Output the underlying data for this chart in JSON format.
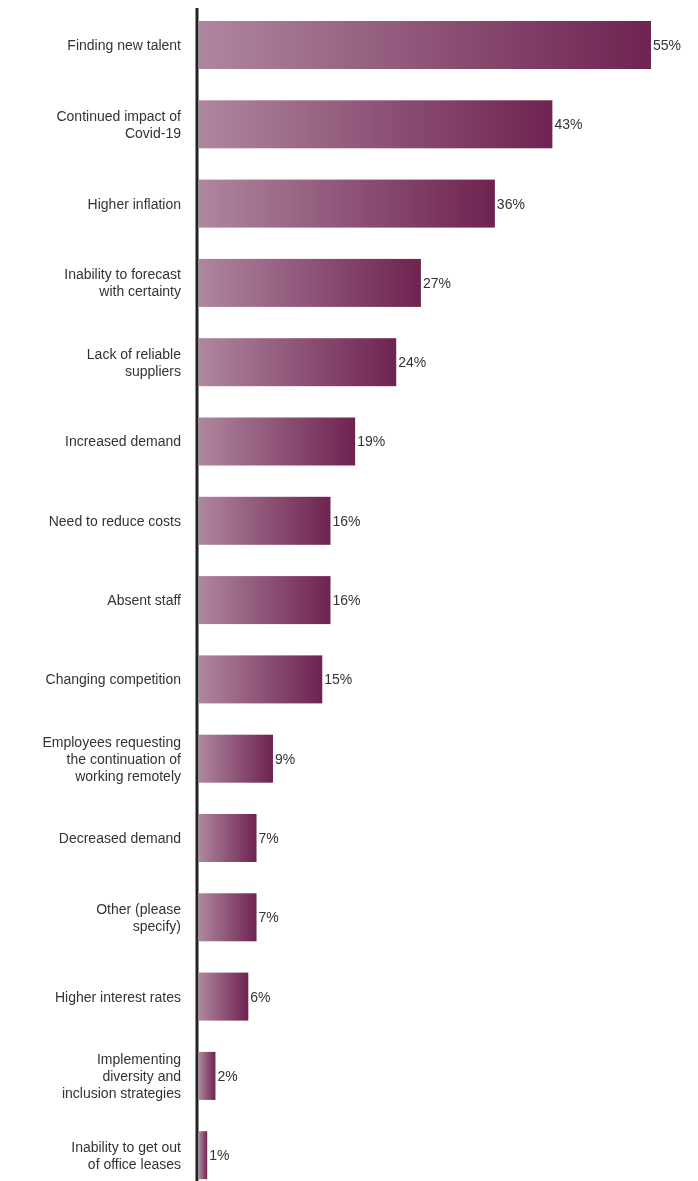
{
  "chart_data": {
    "type": "bar",
    "orientation": "horizontal",
    "categories": [
      "Finding new talent",
      "Continued impact of Covid-19",
      "Higher inflation",
      "Inability to forecast with certainty",
      "Lack of reliable suppliers",
      "Increased demand",
      "Need to reduce costs",
      "Absent staff",
      "Changing competition",
      "Employees requesting the continuation of working remotely",
      "Decreased demand",
      "Other (please specify)",
      "Higher interest rates",
      "Implementing diversity and inclusion strategies",
      "Inability to get out of office leases"
    ],
    "values": [
      55,
      43,
      36,
      27,
      24,
      19,
      16,
      16,
      15,
      9,
      7,
      7,
      6,
      2,
      1
    ],
    "value_labels": [
      "55%",
      "43%",
      "36%",
      "27%",
      "24%",
      "19%",
      "16%",
      "16%",
      "15%",
      "9%",
      "7%",
      "7%",
      "6%",
      "2%",
      "1%"
    ],
    "color": "#6e2350"
  }
}
